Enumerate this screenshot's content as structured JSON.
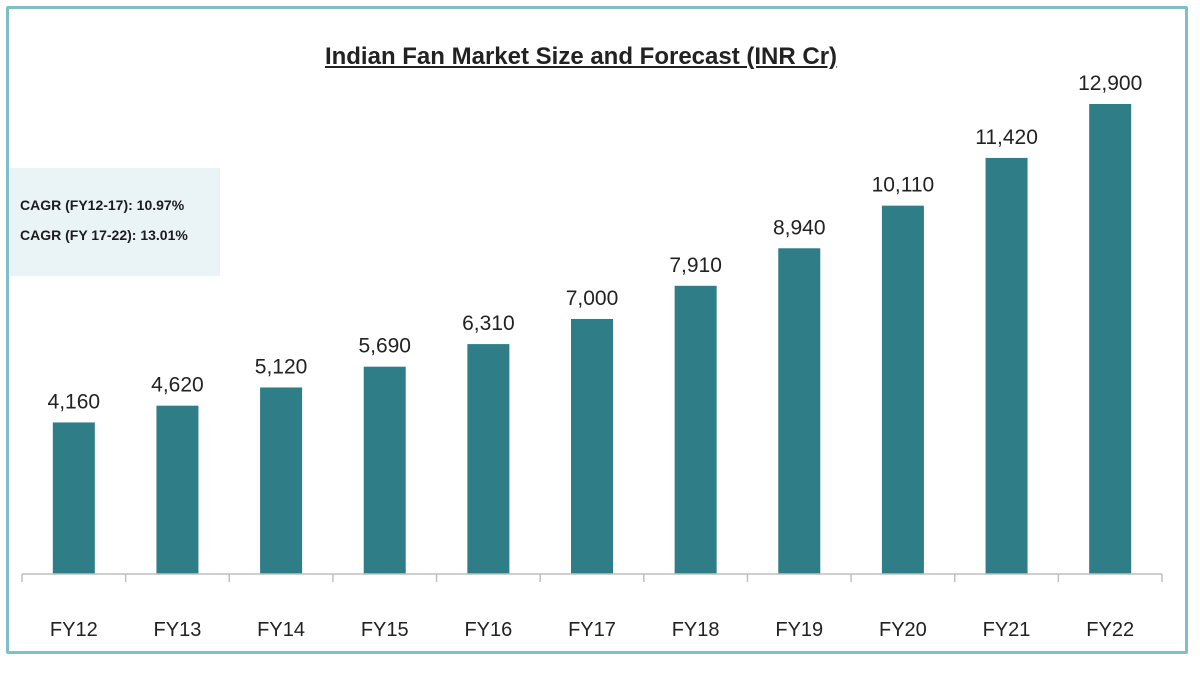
{
  "chart_data": {
    "type": "bar",
    "title": "Indian Fan Market Size and Forecast (INR Cr)",
    "categories": [
      "FY12",
      "FY13",
      "FY14",
      "FY15",
      "FY16",
      "FY17",
      "FY18",
      "FY19",
      "FY20",
      "FY21",
      "FY22"
    ],
    "values": [
      4160,
      4620,
      5120,
      5690,
      6310,
      7000,
      7910,
      8940,
      10110,
      11420,
      12900
    ],
    "value_labels": [
      "4,160",
      "4,620",
      "5,120",
      "5,690",
      "6,310",
      "7,000",
      "7,910",
      "8,940",
      "10,110",
      "11,420",
      "12,900"
    ],
    "xlabel": "",
    "ylabel": "",
    "ylim": [
      0,
      13000
    ],
    "grid": false,
    "legend": "none",
    "bar_color": "#2e7d87",
    "annotations": [
      "CAGR (FY12-17): 10.97%",
      "CAGR (FY 17-22): 13.01%"
    ]
  },
  "colors": {
    "frame": "#7fbfca",
    "annotation_bg": "#eaf3f6",
    "axis": "#bfbfbf"
  }
}
